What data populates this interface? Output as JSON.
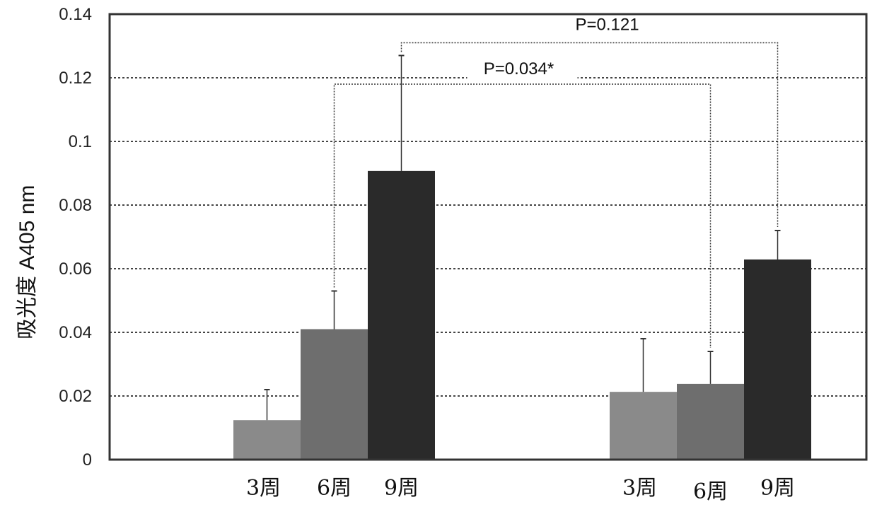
{
  "chart_data": {
    "type": "bar",
    "ylabel": "吸光度  A405 nm",
    "ylim": [
      0,
      0.14
    ],
    "yticks": [
      "0",
      "0.02",
      "0.04",
      "0.06",
      "0.08",
      "0.1",
      "0.12",
      "0.14"
    ],
    "grid": true,
    "groups": [
      {
        "bars": [
          {
            "label": "3周",
            "value": 0.0124,
            "error_top": 0.022,
            "color": "#8a8a8a"
          },
          {
            "label": "6周",
            "value": 0.041,
            "error_top": 0.053,
            "color": "#6e6e6e"
          },
          {
            "label": "9周",
            "value": 0.0907,
            "error_top": 0.127,
            "color": "#2a2a2a"
          }
        ]
      },
      {
        "bars": [
          {
            "label": "3周",
            "value": 0.0213,
            "error_top": 0.038,
            "color": "#8a8a8a"
          },
          {
            "label": "6周",
            "value": 0.0238,
            "error_top": 0.034,
            "color": "#6e6e6e"
          },
          {
            "label": "9周",
            "value": 0.0629,
            "error_top": 0.072,
            "color": "#2a2a2a"
          }
        ]
      }
    ],
    "annotations": [
      {
        "text": "P=0.034*",
        "from": [
          0,
          1
        ],
        "to": [
          1,
          1
        ],
        "level": 0.118
      },
      {
        "text": "P=0.121",
        "from": [
          0,
          2
        ],
        "to": [
          1,
          2
        ],
        "level": 0.131
      }
    ]
  }
}
